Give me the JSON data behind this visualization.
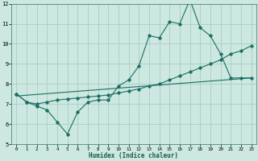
{
  "xlabel": "Humidex (Indice chaleur)",
  "ylabel": "",
  "bg_color": "#cce8e0",
  "grid_color": "#aaccc4",
  "line_color": "#1a6e64",
  "xlim": [
    -0.5,
    23.5
  ],
  "ylim": [
    5,
    12
  ],
  "xticks": [
    0,
    1,
    2,
    3,
    4,
    5,
    6,
    7,
    8,
    9,
    10,
    11,
    12,
    13,
    14,
    15,
    16,
    17,
    18,
    19,
    20,
    21,
    22,
    23
  ],
  "yticks": [
    5,
    6,
    7,
    8,
    9,
    10,
    11,
    12
  ],
  "series1_x": [
    0,
    1,
    2,
    3,
    4,
    5,
    6,
    7,
    8,
    9,
    10,
    11,
    12,
    13,
    14,
    15,
    16,
    17,
    18,
    19,
    20,
    21,
    22,
    23
  ],
  "series1_y": [
    7.5,
    7.1,
    6.9,
    6.7,
    6.1,
    5.5,
    6.6,
    7.1,
    7.2,
    7.2,
    7.9,
    8.2,
    8.9,
    10.4,
    10.3,
    11.1,
    11.0,
    12.2,
    10.8,
    10.4,
    9.5,
    8.3,
    8.3,
    8.3
  ],
  "series2_x": [
    0,
    1,
    2,
    3,
    4,
    5,
    6,
    7,
    8,
    9,
    10,
    11,
    12,
    13,
    14,
    15,
    16,
    17,
    18,
    19,
    20,
    21,
    22,
    23
  ],
  "series2_y": [
    7.5,
    7.1,
    7.0,
    7.1,
    7.2,
    7.25,
    7.3,
    7.35,
    7.4,
    7.45,
    7.55,
    7.65,
    7.75,
    7.9,
    8.0,
    8.2,
    8.4,
    8.6,
    8.8,
    9.0,
    9.2,
    9.5,
    9.65,
    9.9
  ],
  "series3_x": [
    0,
    23
  ],
  "series3_y": [
    7.4,
    8.3
  ]
}
